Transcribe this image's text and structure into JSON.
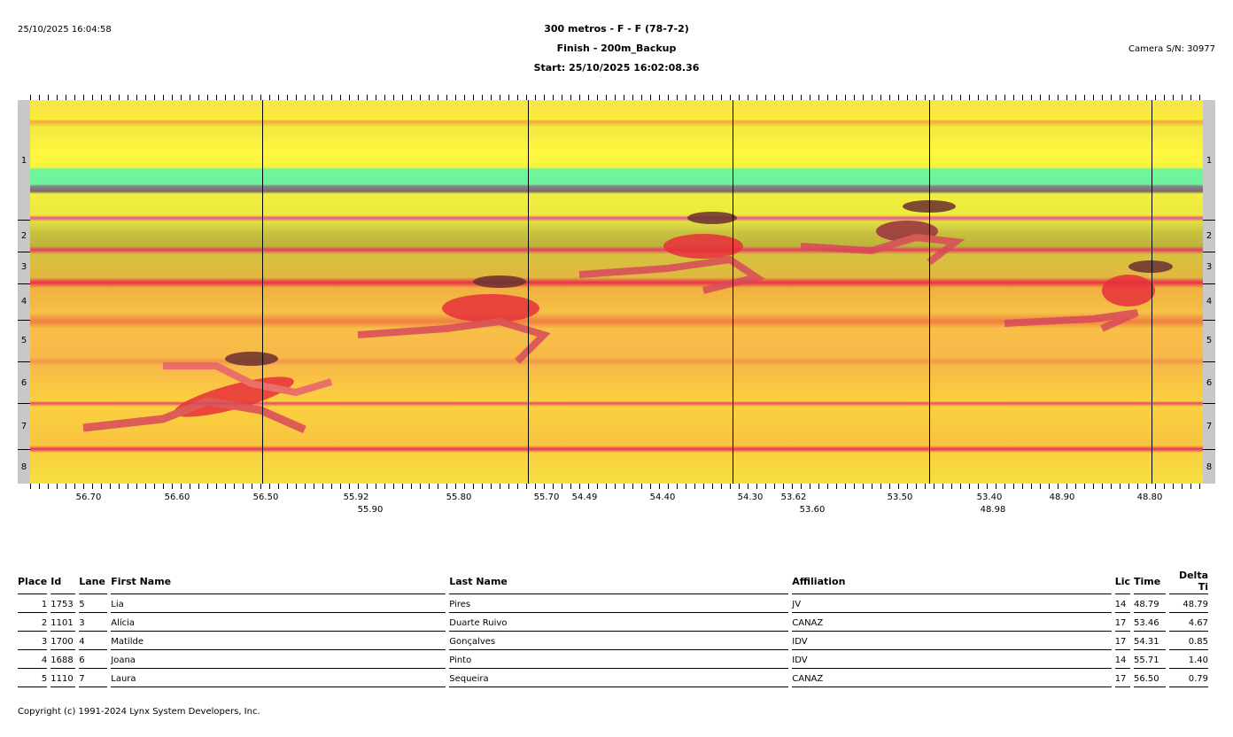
{
  "header": {
    "datetime": "25/10/2025 16:04:58",
    "title": "300 metros - F - F (78-7-2)",
    "subtitle": "Finish - 200m_Backup",
    "start": "Start: 25/10/2025 16:02:08.36",
    "camera": "Camera S/N: 30977"
  },
  "photo": {
    "lanes": [
      "1",
      "2",
      "3",
      "4",
      "5",
      "6",
      "7",
      "8"
    ],
    "time_ticks": [
      "56.70",
      "56.60",
      "56.50",
      "55.92",
      "55.90",
      "55.80",
      "55.70",
      "54.49",
      "54.40",
      "54.30",
      "53.62",
      "53.60",
      "53.50",
      "53.40",
      "48.98",
      "48.90",
      "48.80"
    ]
  },
  "results": {
    "columns": [
      "Place",
      "Id",
      "Lane",
      "First Name",
      "Last Name",
      "Affiliation",
      "Lic",
      "Time",
      "Delta Ti"
    ],
    "rows": [
      {
        "place": "1",
        "id": "1753",
        "lane": "5",
        "first": "Lia",
        "last": "Pires",
        "aff": "JV",
        "lic": "14",
        "time": "48.79",
        "delta": "48.79"
      },
      {
        "place": "2",
        "id": "1101",
        "lane": "3",
        "first": "Alícia",
        "last": "Duarte Ruivo",
        "aff": "CANAZ",
        "lic": "17",
        "time": "53.46",
        "delta": "4.67"
      },
      {
        "place": "3",
        "id": "1700",
        "lane": "4",
        "first": "Matilde",
        "last": "Gonçalves",
        "aff": "IDV",
        "lic": "17",
        "time": "54.31",
        "delta": "0.85"
      },
      {
        "place": "4",
        "id": "1688",
        "lane": "6",
        "first": "Joana",
        "last": "Pinto",
        "aff": "IDV",
        "lic": "14",
        "time": "55.71",
        "delta": "1.40"
      },
      {
        "place": "5",
        "id": "1110",
        "lane": "7",
        "first": "Laura",
        "last": "Sequeira",
        "aff": "CANAZ",
        "lic": "17",
        "time": "56.50",
        "delta": "0.79"
      }
    ]
  },
  "footer": {
    "copyright": "Copyright (c) 1991-2024 Lynx System Developers, Inc."
  }
}
